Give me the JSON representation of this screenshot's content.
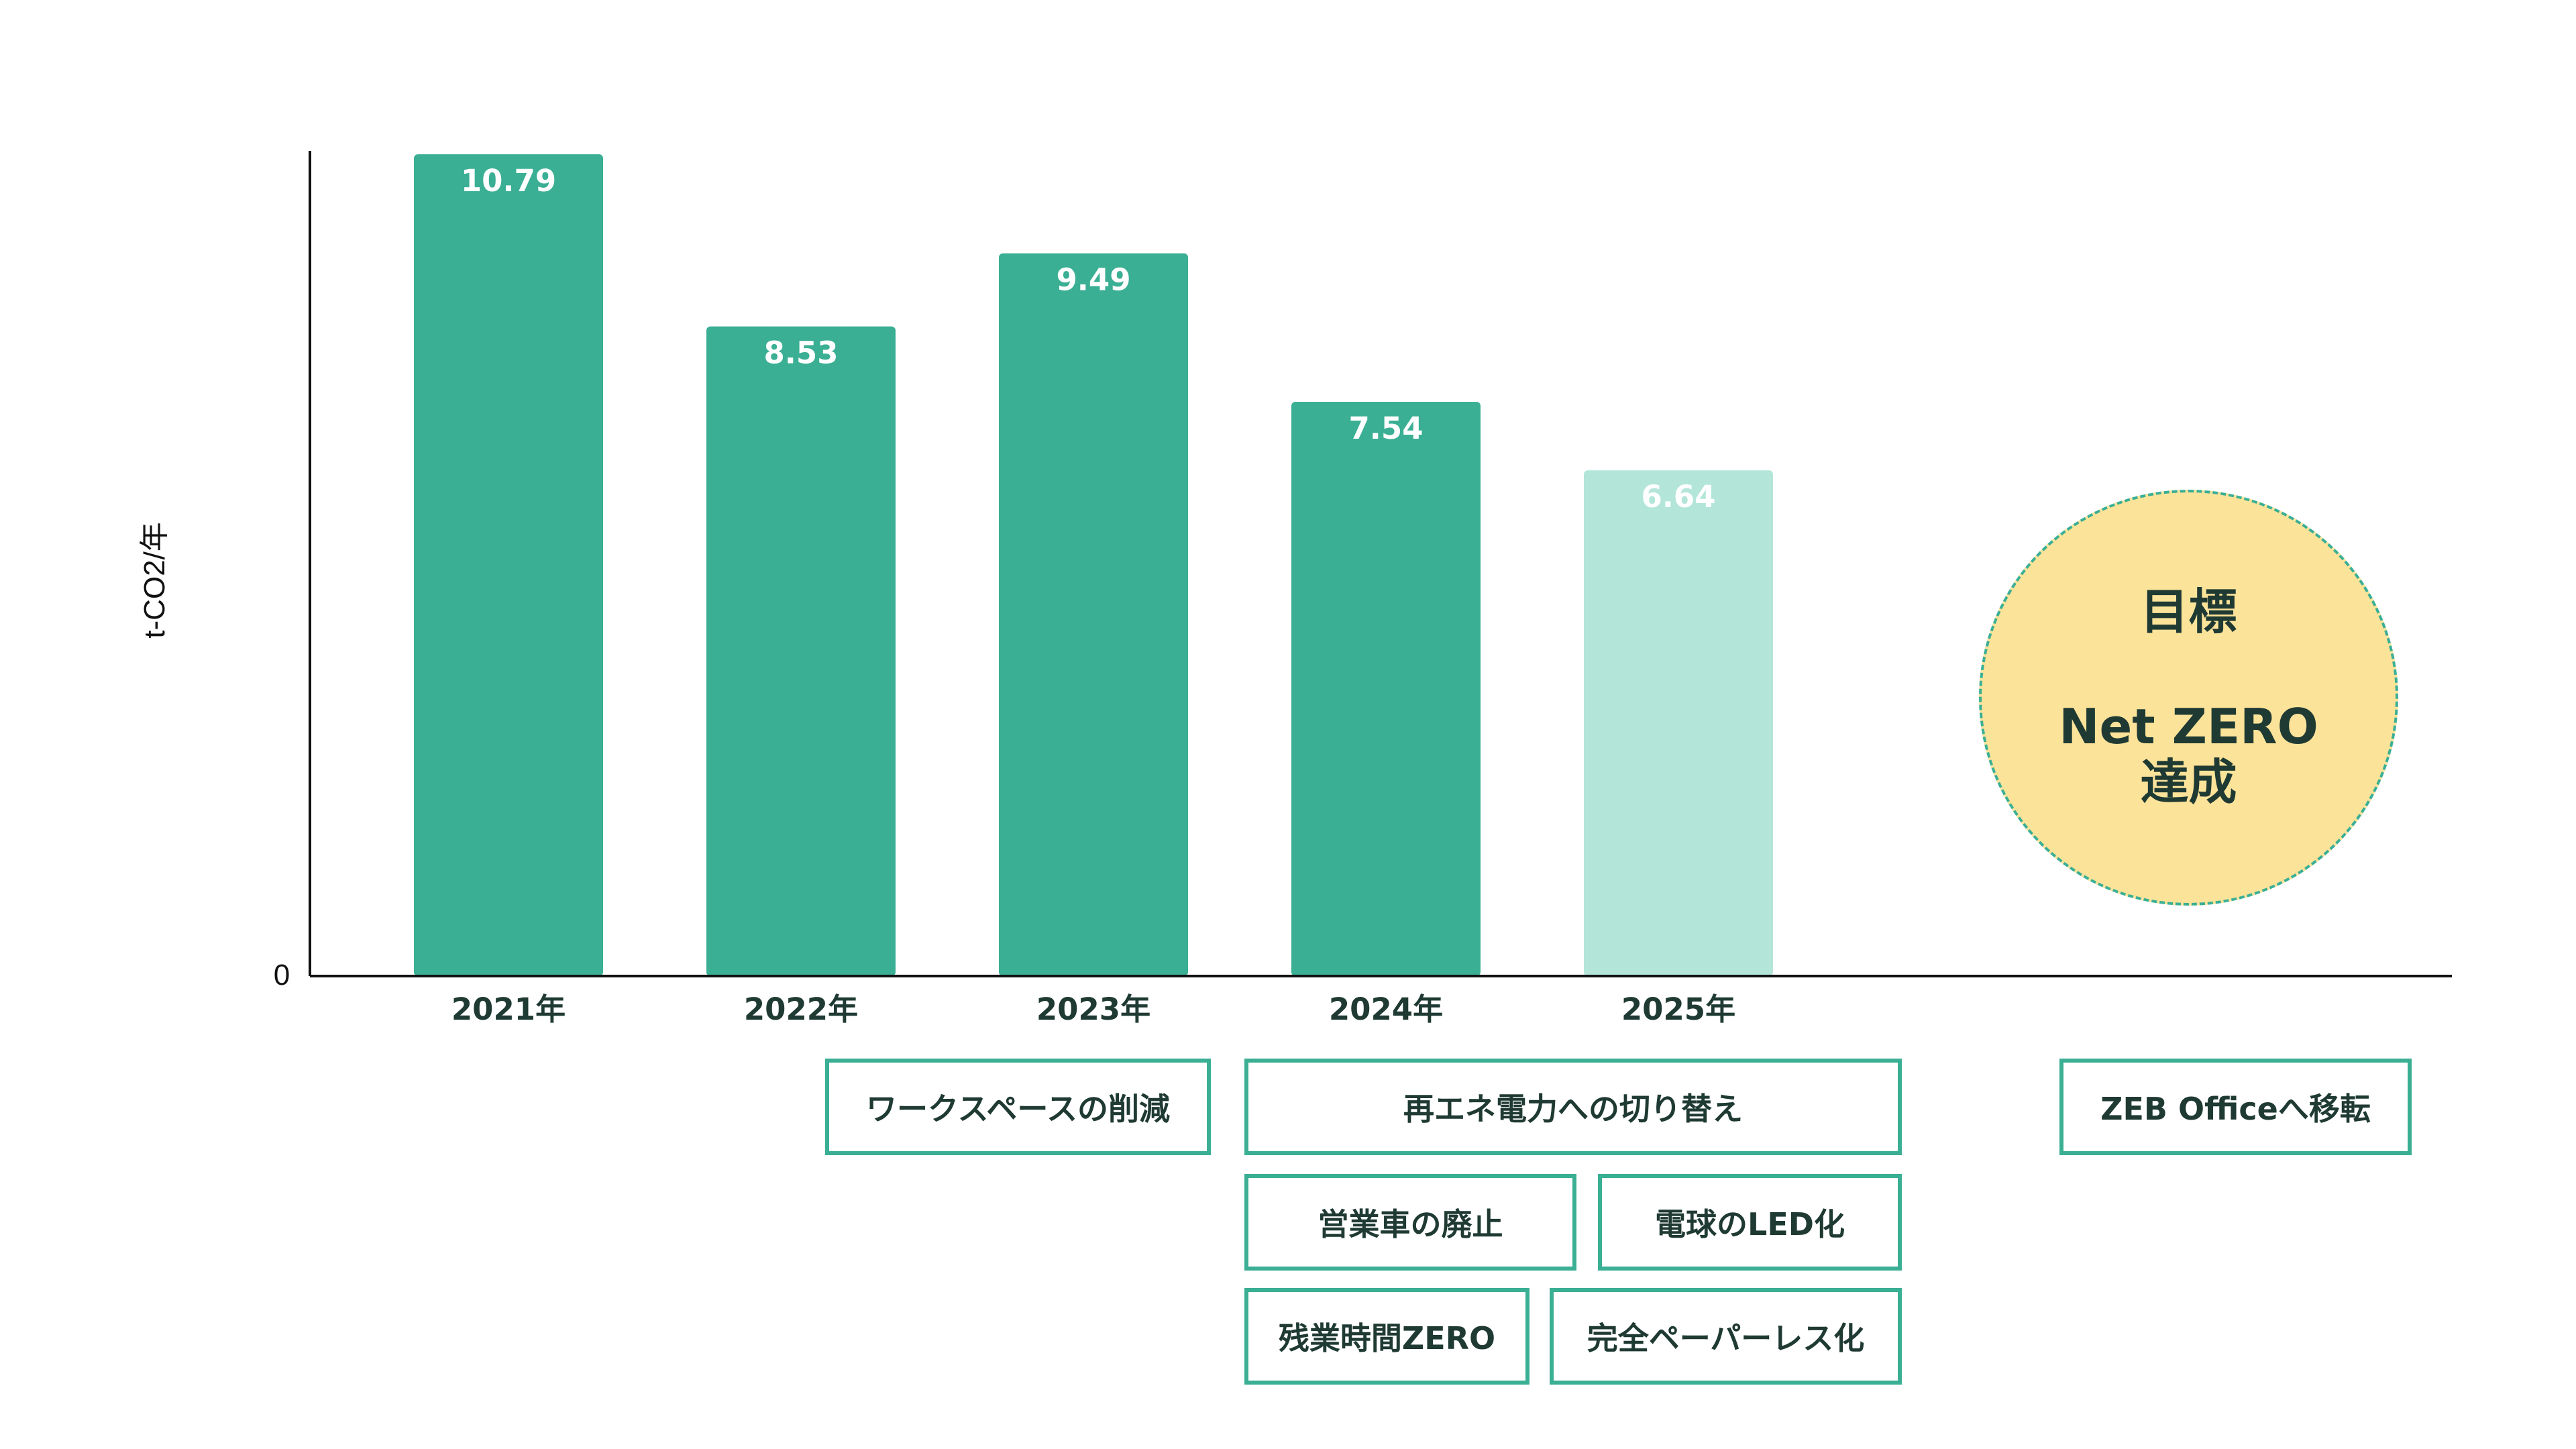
{
  "chart_data": {
    "type": "bar",
    "categories": [
      "2021年",
      "2022年",
      "2023年",
      "2024年",
      "2025年"
    ],
    "values": [
      10.79,
      8.53,
      9.49,
      7.54,
      6.64
    ],
    "value_labels": [
      "10.79",
      "8.53",
      "9.49",
      "7.54",
      "6.64"
    ],
    "bar_colors": [
      "#3aaf94",
      "#3aaf94",
      "#3aaf94",
      "#3aaf94",
      "#b3e6d9"
    ],
    "ylabel": "t-CO2/年",
    "y_zero_label": "0",
    "ylim": [
      0,
      10.79
    ],
    "grid": false
  },
  "goal": {
    "title": "目標",
    "line1": "Net ZERO",
    "line2": "達成",
    "fill_color": "#fce39a",
    "border_color": "#3aaf94"
  },
  "measures": {
    "workspace": "ワークスペースの削減",
    "renewable": "再エネ電力への切り替え",
    "zeb_office": "ZEB Officeへ移転",
    "company_car": "営業車の廃止",
    "led": "電球のLED化",
    "overtime": "残業時間ZERO",
    "paperless": "完全ペーパーレス化"
  },
  "colors": {
    "accent": "#3aaf94",
    "accent_light": "#b3e6d9",
    "text_dark": "#1f3a33"
  }
}
